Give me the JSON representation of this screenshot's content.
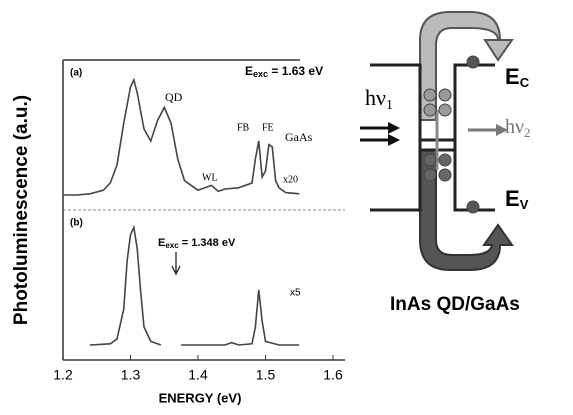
{
  "chart_data": [
    {
      "type": "line",
      "y_label": "Photoluminescence (a.u.)",
      "panel_label": "(a)",
      "annotation": {
        "main": "E",
        "sub": "exc",
        "rest": " = 1.63 eV"
      },
      "peak_labels": [
        "QD",
        "WL",
        "FB",
        "FE",
        "GaAs",
        "x20"
      ],
      "xlim": [
        1.2,
        1.6
      ],
      "ylim": [
        0,
        100
      ],
      "x": [
        1.2,
        1.22,
        1.24,
        1.26,
        1.27,
        1.28,
        1.29,
        1.3,
        1.305,
        1.31,
        1.32,
        1.33,
        1.34,
        1.35,
        1.36,
        1.37,
        1.38,
        1.4,
        1.42,
        1.43,
        1.44,
        1.46,
        1.48,
        1.485,
        1.49,
        1.495,
        1.5,
        1.505,
        1.51,
        1.515,
        1.52,
        1.53,
        1.55
      ],
      "series": [
        {
          "color": "#444444",
          "values": [
            0,
            0,
            1,
            4,
            10,
            25,
            60,
            90,
            96,
            85,
            55,
            45,
            62,
            73,
            60,
            30,
            12,
            4,
            8,
            3,
            5,
            6,
            10,
            30,
            45,
            15,
            20,
            42,
            40,
            12,
            6,
            2,
            1
          ]
        }
      ]
    },
    {
      "type": "line",
      "x_label": "ENERGY (eV)",
      "panel_label": "(b)",
      "annotation": {
        "main": "E",
        "sub": "exc",
        "rest": " = 1.348 eV"
      },
      "peak_labels": [
        "x5"
      ],
      "xlim": [
        1.2,
        1.6
      ],
      "ylim": [
        0,
        100
      ],
      "xticks": [
        1.2,
        1.3,
        1.4,
        1.5,
        1.6
      ],
      "x": [
        1.24,
        1.27,
        1.28,
        1.29,
        1.295,
        1.3,
        1.305,
        1.31,
        1.315,
        1.32,
        1.33,
        1.345,
        1.36,
        1.375,
        1.4,
        1.44,
        1.45,
        1.46,
        1.48,
        1.485,
        1.49,
        1.495,
        1.5,
        1.52,
        1.55
      ],
      "series": [
        {
          "color": "#444444",
          "values": [
            0,
            1,
            5,
            30,
            70,
            92,
            98,
            80,
            45,
            15,
            3,
            0,
            null,
            0,
            0,
            0,
            2,
            0,
            1,
            15,
            46,
            20,
            3,
            0,
            0
          ]
        }
      ]
    }
  ],
  "diagram": {
    "h1": "hν",
    "h1_sub": "1",
    "h2": "hν",
    "h2_sub": "2",
    "ec": "E",
    "ec_sub": "C",
    "ev": "E",
    "ev_sub": "V",
    "caption": "InAs QD/GaAs"
  }
}
